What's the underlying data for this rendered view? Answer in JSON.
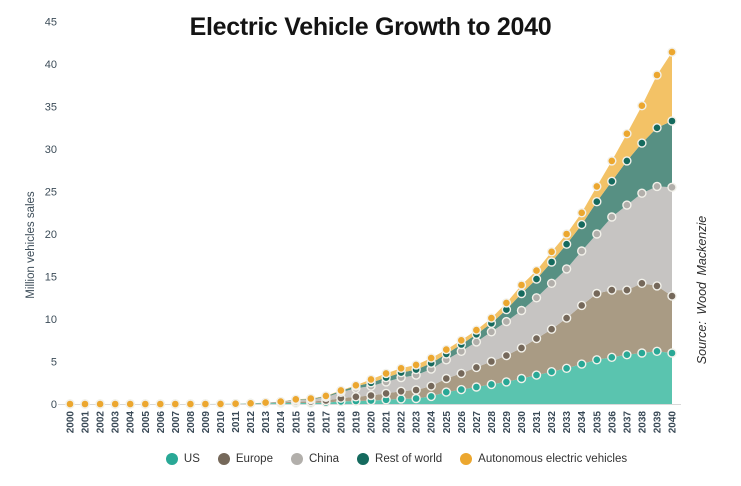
{
  "source_note": "Source:  Wood Mackenzie",
  "chart_data": {
    "type": "area",
    "stacked": true,
    "markers": true,
    "title": "Electric Vehicle Growth to 2040",
    "xlabel": "",
    "ylabel": "Million vehicles sales",
    "ylim": [
      0,
      45
    ],
    "yticks": [
      0,
      5,
      10,
      15,
      20,
      25,
      30,
      35,
      40,
      45
    ],
    "grid": false,
    "legend_position": "bottom",
    "source": "Wood Mackenzie",
    "marker_stroke_color": "#f2f1ea",
    "baseline_color": "#d9d9d9",
    "x": [
      2000,
      2001,
      2002,
      2003,
      2004,
      2005,
      2006,
      2007,
      2008,
      2009,
      2010,
      2011,
      2012,
      2013,
      2014,
      2015,
      2016,
      2017,
      2018,
      2019,
      2020,
      2021,
      2022,
      2023,
      2024,
      2025,
      2026,
      2027,
      2028,
      2029,
      2030,
      2031,
      2032,
      2033,
      2034,
      2035,
      2036,
      2037,
      2038,
      2039,
      2040
    ],
    "series": [
      {
        "name": "US",
        "color": "#29a896",
        "fill": "#5ac4af",
        "values": [
          0,
          0,
          0,
          0,
          0,
          0,
          0,
          0,
          0,
          0,
          0.01,
          0.03,
          0.05,
          0.09,
          0.12,
          0.12,
          0.12,
          0.17,
          0.3,
          0.35,
          0.4,
          0.5,
          0.6,
          0.65,
          0.9,
          1.4,
          1.7,
          2.0,
          2.3,
          2.6,
          3.0,
          3.4,
          3.8,
          4.2,
          4.7,
          5.2,
          5.5,
          5.8,
          6.0,
          6.2,
          6.0
        ]
      },
      {
        "name": "Europe",
        "color": "#75685a",
        "fill": "#a99b84",
        "values": [
          0,
          0,
          0,
          0,
          0,
          0,
          0,
          0,
          0,
          0,
          0,
          0,
          0.03,
          0.05,
          0.08,
          0.15,
          0.17,
          0.24,
          0.38,
          0.5,
          0.6,
          0.75,
          0.9,
          1.0,
          1.2,
          1.6,
          1.9,
          2.3,
          2.7,
          3.1,
          3.6,
          4.3,
          5.0,
          5.9,
          6.9,
          7.8,
          7.9,
          7.6,
          8.2,
          7.7,
          6.7
        ]
      },
      {
        "name": "China",
        "color": "#b2afab",
        "fill": "#c6c4c2",
        "values": [
          0,
          0,
          0,
          0,
          0,
          0,
          0,
          0,
          0,
          0,
          0,
          0,
          0,
          0.02,
          0.05,
          0.18,
          0.25,
          0.38,
          0.7,
          1.0,
          1.1,
          1.35,
          1.6,
          1.75,
          2.0,
          2.2,
          2.6,
          3.0,
          3.5,
          4.0,
          4.4,
          4.8,
          5.4,
          5.8,
          6.4,
          7.0,
          8.6,
          10.0,
          10.6,
          11.7,
          12.8
        ]
      },
      {
        "name": "Rest of world",
        "color": "#156a5e",
        "fill": "#579083",
        "values": [
          0,
          0,
          0,
          0,
          0,
          0,
          0,
          0,
          0,
          0,
          0,
          0,
          0,
          0,
          0.03,
          0.07,
          0.08,
          0.11,
          0.17,
          0.25,
          0.4,
          0.5,
          0.6,
          0.65,
          0.7,
          0.7,
          0.8,
          0.9,
          1.0,
          1.4,
          2.0,
          2.2,
          2.5,
          2.9,
          3.1,
          3.8,
          4.2,
          5.2,
          5.9,
          6.9,
          7.8
        ]
      },
      {
        "name": "Autonomous electric vehicles",
        "color": "#eca72f",
        "fill": "#f3c266",
        "values": [
          0,
          0,
          0,
          0,
          0,
          0,
          0,
          0,
          0,
          0,
          0,
          0,
          0,
          0,
          0,
          0.03,
          0.03,
          0.05,
          0.05,
          0.1,
          0.4,
          0.5,
          0.5,
          0.55,
          0.6,
          0.5,
          0.5,
          0.5,
          0.6,
          0.8,
          1.0,
          1.0,
          1.2,
          1.2,
          1.4,
          1.8,
          2.4,
          3.2,
          4.4,
          6.2,
          8.1
        ]
      }
    ]
  }
}
